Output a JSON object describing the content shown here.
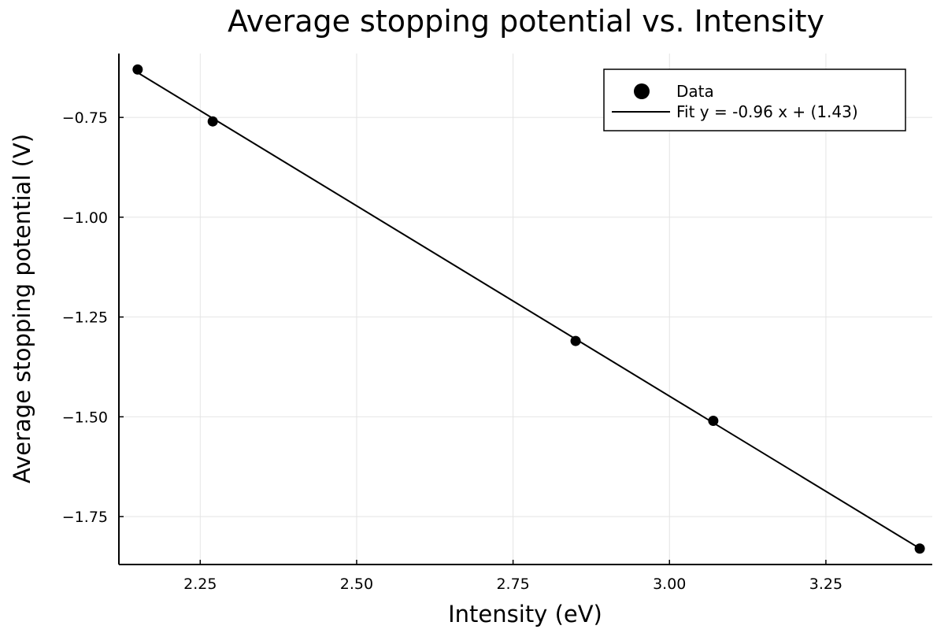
{
  "chart_data": {
    "type": "scatter",
    "title": "Average stopping potential vs. Intensity",
    "xlabel": "Intensity (eV)",
    "ylabel": "Average stopping potential (V)",
    "xlim": [
      2.12,
      3.42
    ],
    "ylim": [
      -1.87,
      -0.59
    ],
    "xticks": [
      2.25,
      2.5,
      2.75,
      3.0,
      3.25
    ],
    "xtick_labels": [
      "2.25",
      "2.50",
      "2.75",
      "3.00",
      "3.25"
    ],
    "yticks": [
      -0.75,
      -1.0,
      -1.25,
      -1.5,
      -1.75
    ],
    "ytick_labels": [
      "−0.75",
      "−1.00",
      "−1.25",
      "−1.50",
      "−1.75"
    ],
    "grid": true,
    "legend_position": "top-right",
    "series": [
      {
        "name": "Data",
        "kind": "scatter",
        "color": "#000000",
        "x": [
          2.15,
          2.27,
          2.85,
          3.07,
          3.4
        ],
        "y": [
          -0.63,
          -0.76,
          -1.31,
          -1.51,
          -1.83
        ]
      },
      {
        "name": "Fit y = -0.96 x + (1.43)",
        "kind": "line",
        "color": "#000000",
        "slope": -0.96,
        "intercept": 1.43,
        "x": [
          2.15,
          3.4
        ]
      }
    ]
  }
}
